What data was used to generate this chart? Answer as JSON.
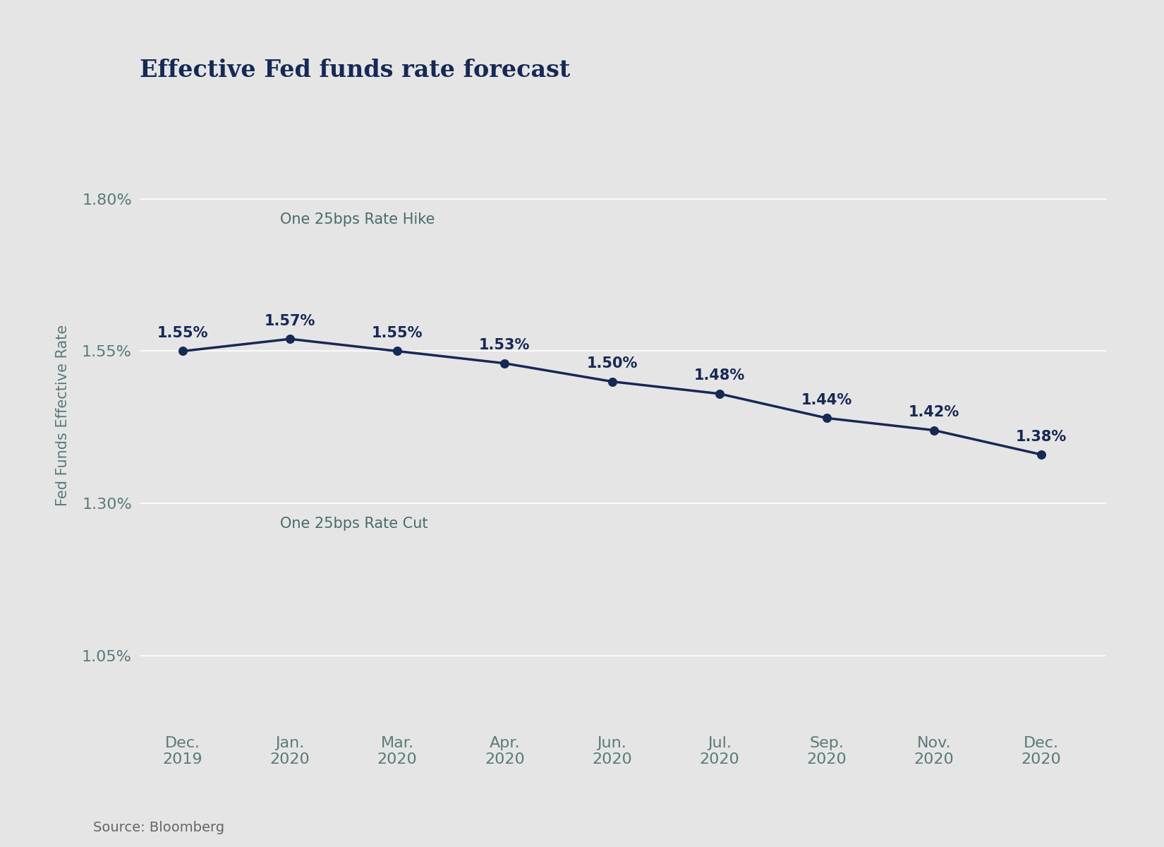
{
  "title": "Effective Fed funds rate forecast",
  "ylabel": "Fed Funds Effective Rate",
  "source": "Source: Bloomberg",
  "background_color": "#e5e5e5",
  "plot_bg_color": "#e5e5e5",
  "line_color": "#162955",
  "marker_color": "#162955",
  "x_labels": [
    "Dec.\n2019",
    "Jan.\n2020",
    "Mar.\n2020",
    "Apr.\n2020",
    "Jun.\n2020",
    "Jul.\n2020",
    "Sep.\n2020",
    "Nov.\n2020",
    "Dec.\n2020"
  ],
  "x_values": [
    0,
    1,
    2,
    3,
    4,
    5,
    6,
    7,
    8
  ],
  "y_values": [
    1.55,
    1.57,
    1.55,
    1.53,
    1.5,
    1.48,
    1.44,
    1.42,
    1.38
  ],
  "y_labels": [
    "1.55%",
    "1.57%",
    "1.55%",
    "1.53%",
    "1.50%",
    "1.48%",
    "1.44%",
    "1.42%",
    "1.38%"
  ],
  "yticks": [
    1.05,
    1.3,
    1.55,
    1.8
  ],
  "ytick_labels": [
    "1.05%",
    "1.30%",
    "1.55%",
    "1.80%"
  ],
  "ylim": [
    0.93,
    1.96
  ],
  "xlim": [
    -0.4,
    8.6
  ],
  "hline_hike": 1.8,
  "hline_cut": 1.3,
  "hline_155": 1.55,
  "hline_105": 1.05,
  "hike_label": "One 25bps Rate Hike",
  "cut_label": "One 25bps Rate Cut",
  "title_color": "#162955",
  "tick_color": "#5a7a7a",
  "annotation_color": "#162955",
  "hline_label_color": "#4a6a6a",
  "hline_color": "#ffffff",
  "ylabel_color": "#5a7a7a",
  "source_color": "#666666",
  "title_fontsize": 24,
  "tick_fontsize": 16,
  "annotation_fontsize": 15,
  "ylabel_fontsize": 15,
  "hline_label_fontsize": 15,
  "source_fontsize": 14,
  "label_offsets_y": [
    0.018,
    0.018,
    0.018,
    0.018,
    0.018,
    0.018,
    0.018,
    0.018,
    0.018
  ]
}
